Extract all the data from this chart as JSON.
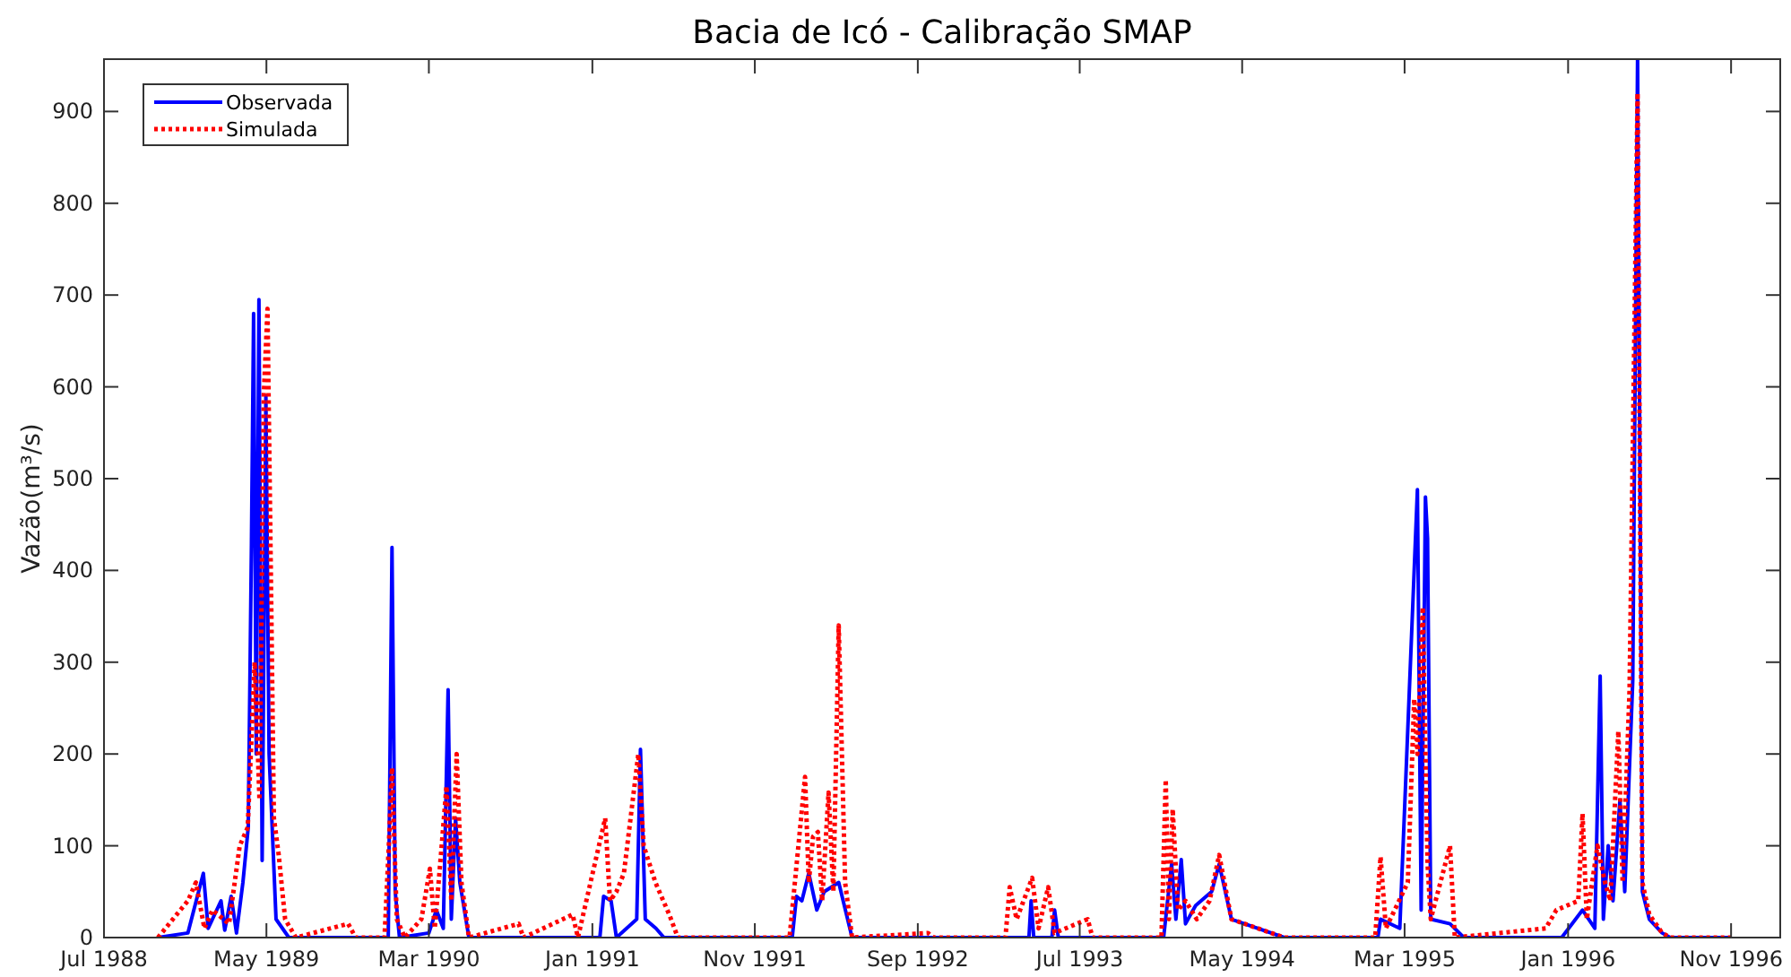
{
  "chart_data": {
    "type": "line",
    "title": "Bacia de Icó - Calibração SMAP",
    "ylabel": "Vazão(m³/s)",
    "xlim": [
      "1988-07-01",
      "1997-02-01"
    ],
    "xticks": [
      {
        "value": "1988-07-01",
        "label": "Jul 1988"
      },
      {
        "value": "1989-05-01",
        "label": "May 1989"
      },
      {
        "value": "1990-03-01",
        "label": "Mar 1990"
      },
      {
        "value": "1991-01-01",
        "label": "Jan 1991"
      },
      {
        "value": "1991-11-01",
        "label": "Nov 1991"
      },
      {
        "value": "1992-09-01",
        "label": "Sep 1992"
      },
      {
        "value": "1993-07-01",
        "label": "Jul 1993"
      },
      {
        "value": "1994-05-01",
        "label": "May 1994"
      },
      {
        "value": "1995-03-01",
        "label": "Mar 1995"
      },
      {
        "value": "1996-01-01",
        "label": "Jan 1996"
      },
      {
        "value": "1996-11-01",
        "label": "Nov 1996"
      }
    ],
    "ylim": [
      0,
      957
    ],
    "yticks": [
      0,
      100,
      200,
      300,
      400,
      500,
      600,
      700,
      800,
      900
    ],
    "grid": false,
    "legend": "top left",
    "series": [
      {
        "name": "Observada",
        "color": "#0000ff",
        "line_style": "solid",
        "x": [
          "1988-10-10",
          "1988-12-05",
          "1989-01-03",
          "1989-01-12",
          "1989-02-05",
          "1989-02-12",
          "1989-02-24",
          "1989-03-06",
          "1989-03-18",
          "1989-03-28",
          "1989-04-03",
          "1989-04-07",
          "1989-04-12",
          "1989-04-17",
          "1989-04-23",
          "1989-04-30",
          "1989-05-06",
          "1989-05-19",
          "1989-06-12",
          "1989-12-15",
          "1989-12-22",
          "1989-12-28",
          "1990-01-05",
          "1990-03-01",
          "1990-03-15",
          "1990-03-28",
          "1990-04-06",
          "1990-04-12",
          "1990-04-20",
          "1990-04-28",
          "1990-05-15",
          "1991-01-15",
          "1991-01-22",
          "1991-02-05",
          "1991-02-15",
          "1991-03-25",
          "1991-04-01",
          "1991-04-10",
          "1991-04-30",
          "1991-05-15",
          "1992-01-10",
          "1992-01-18",
          "1992-01-28",
          "1992-02-10",
          "1992-02-25",
          "1992-03-10",
          "1992-04-06",
          "1992-05-01",
          "1993-03-28",
          "1993-04-01",
          "1993-04-06",
          "1993-05-10",
          "1993-05-15",
          "1993-05-22",
          "1993-12-05",
          "1993-12-20",
          "1993-12-28",
          "1994-01-07",
          "1994-01-15",
          "1994-02-03",
          "1994-03-05",
          "1994-03-19",
          "1994-04-11",
          "1994-07-19",
          "1995-01-10",
          "1995-01-15",
          "1995-02-20",
          "1995-03-25",
          "1995-04-01",
          "1995-04-09",
          "1995-04-13",
          "1995-04-19",
          "1995-05-25",
          "1995-06-20",
          "1995-12-20",
          "1996-01-28",
          "1996-02-20",
          "1996-03-01",
          "1996-03-07",
          "1996-03-16",
          "1996-03-25",
          "1996-04-07",
          "1996-04-16",
          "1996-05-01",
          "1996-05-10",
          "1996-05-19",
          "1996-06-01",
          "1996-06-25",
          "1996-07-10",
          "1996-11-01"
        ],
        "values": [
          0,
          5,
          70,
          10,
          40,
          8,
          45,
          5,
          60,
          120,
          430,
          680,
          200,
          695,
          84,
          590,
          200,
          20,
          0,
          0,
          425,
          50,
          0,
          5,
          30,
          10,
          270,
          20,
          130,
          60,
          0,
          0,
          45,
          40,
          0,
          20,
          205,
          20,
          10,
          0,
          0,
          45,
          40,
          70,
          30,
          50,
          60,
          0,
          0,
          40,
          0,
          0,
          30,
          0,
          0,
          80,
          20,
          85,
          15,
          35,
          50,
          80,
          20,
          0,
          0,
          20,
          10,
          488,
          30,
          480,
          435,
          20,
          15,
          0,
          0,
          30,
          10,
          285,
          20,
          100,
          40,
          150,
          50,
          280,
          957,
          50,
          20,
          5,
          0,
          0
        ]
      },
      {
        "name": "Simulada",
        "color": "#ff0000",
        "line_style": "dotted",
        "x": [
          "1988-10-10",
          "1988-12-05",
          "1988-12-20",
          "1989-01-05",
          "1989-01-20",
          "1989-02-20",
          "1989-03-12",
          "1989-03-27",
          "1989-04-09",
          "1989-04-18",
          "1989-04-26",
          "1989-05-03",
          "1989-05-09",
          "1989-05-15",
          "1989-05-24",
          "1989-06-05",
          "1989-06-25",
          "1989-10-01",
          "1989-10-15",
          "1989-12-08",
          "1989-12-16",
          "1989-12-22",
          "1989-12-31",
          "1990-01-15",
          "1990-02-15",
          "1990-03-03",
          "1990-03-12",
          "1990-03-25",
          "1990-04-03",
          "1990-04-12",
          "1990-04-22",
          "1990-05-01",
          "1990-05-15",
          "1990-08-16",
          "1990-08-25",
          "1990-11-25",
          "1990-12-05",
          "1991-01-25",
          "1991-02-03",
          "1991-02-15",
          "1991-03-01",
          "1991-03-28",
          "1991-04-07",
          "1991-04-29",
          "1991-05-10",
          "1991-05-25",
          "1991-06-10",
          "1992-01-05",
          "1992-02-03",
          "1992-02-10",
          "1992-02-18",
          "1992-02-27",
          "1992-03-06",
          "1992-03-18",
          "1992-03-27",
          "1992-04-06",
          "1992-04-18",
          "1992-05-01",
          "1992-09-20",
          "1992-10-01",
          "1993-02-12",
          "1993-02-20",
          "1993-03-05",
          "1993-04-03",
          "1993-04-15",
          "1993-05-03",
          "1993-05-15",
          "1993-07-16",
          "1993-07-25",
          "1993-12-01",
          "1993-12-09",
          "1993-12-15",
          "1993-12-22",
          "1994-01-01",
          "1994-01-15",
          "1994-02-05",
          "1994-03-01",
          "1994-03-19",
          "1994-04-11",
          "1994-07-19",
          "1995-01-05",
          "1995-01-15",
          "1995-01-25",
          "1995-03-07",
          "1995-03-19",
          "1995-03-25",
          "1995-04-04",
          "1995-04-13",
          "1995-04-19",
          "1995-05-25",
          "1995-06-03",
          "1995-11-20",
          "1995-12-10",
          "1996-01-20",
          "1996-01-28",
          "1996-02-05",
          "1996-02-25",
          "1996-03-10",
          "1996-03-20",
          "1996-04-04",
          "1996-04-12",
          "1996-04-25",
          "1996-05-10",
          "1996-05-19",
          "1996-06-01",
          "1996-06-25",
          "1996-07-10",
          "1996-11-01"
        ],
        "values": [
          0,
          40,
          60,
          10,
          30,
          15,
          100,
          120,
          300,
          150,
          590,
          685,
          410,
          130,
          90,
          20,
          0,
          15,
          0,
          0,
          100,
          185,
          20,
          0,
          20,
          75,
          10,
          100,
          165,
          40,
          200,
          60,
          0,
          15,
          0,
          25,
          0,
          130,
          40,
          50,
          70,
          200,
          100,
          60,
          45,
          25,
          0,
          0,
          175,
          60,
          110,
          115,
          40,
          158,
          50,
          340,
          60,
          0,
          5,
          0,
          0,
          55,
          20,
          65,
          10,
          55,
          5,
          20,
          0,
          0,
          172,
          20,
          140,
          30,
          40,
          20,
          40,
          90,
          20,
          0,
          0,
          88,
          10,
          60,
          260,
          200,
          360,
          80,
          20,
          100,
          0,
          10,
          30,
          40,
          135,
          20,
          100,
          60,
          40,
          225,
          60,
          270,
          920,
          60,
          25,
          5,
          0,
          0
        ]
      }
    ]
  }
}
